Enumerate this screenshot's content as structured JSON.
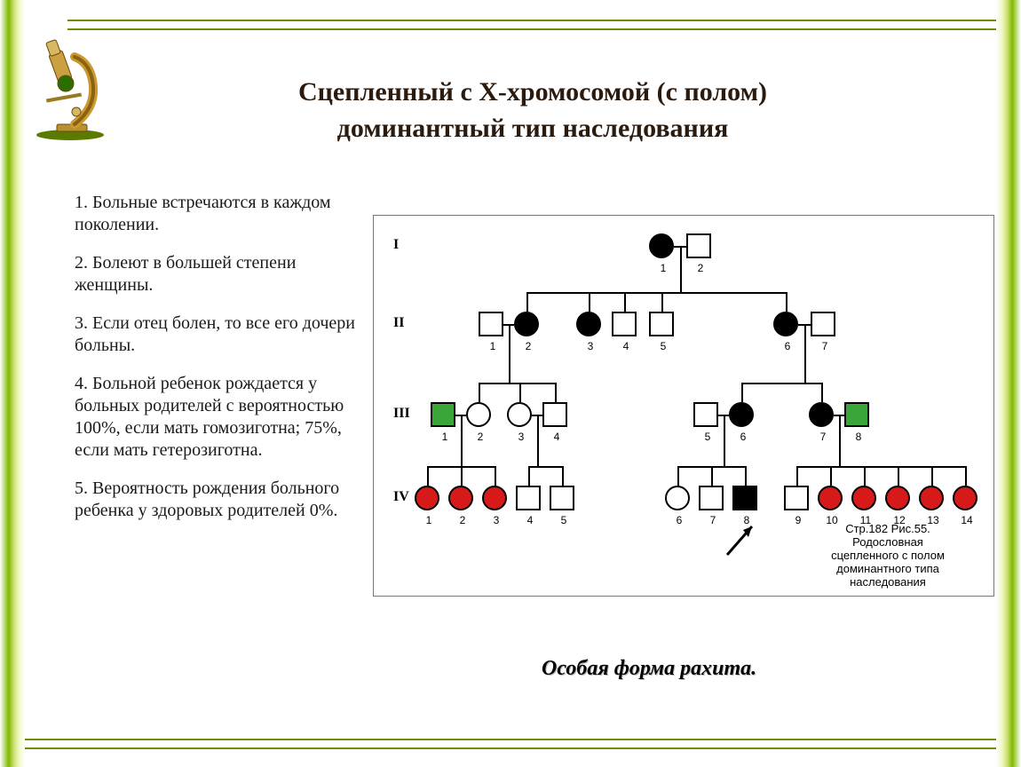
{
  "title": {
    "line1": "Сцепленный с Х-хромосомой    (с   полом)",
    "line2": "доминантный  тип  наследования"
  },
  "bullets": {
    "p1": "1. Больные встречаются в каждом поколении.",
    "p2": "2. Болеют в большей степени женщины.",
    "p3": "3. Если отец болен, то все его дочери больны.",
    "p4": "4. Больной ребенок рождается у больных родителей с вероятностью 100%, если мать гомозиготна; 75%, если мать гетерозиготна.",
    "p5": "5. Вероятность рождения больного ребенка у здоровых родителей 0%."
  },
  "disease_label": "Особая форма рахита.",
  "figure_caption": "Стр.182 Рис.55. Родословная сцепленного с полом доминантного типа наследования",
  "colors": {
    "affected_red": "#d61a1a",
    "affected_green": "#3aa63a",
    "affected_black": "#000000",
    "unaffected": "#ffffff",
    "border": "#000000",
    "frame_green": "#7fb800"
  },
  "generations": [
    "I",
    "II",
    "III",
    "IV"
  ],
  "pedigree": {
    "legend_shapes": {
      "square": "male",
      "circle": "female"
    },
    "fill_meaning": {
      "black": "affected-original",
      "red": "affected-gen4-female",
      "green": "marry-in-male",
      "white": "unaffected"
    },
    "gen1": [
      {
        "n": 1,
        "sex": "F",
        "fill": "black"
      },
      {
        "n": 2,
        "sex": "M",
        "fill": "white"
      }
    ],
    "gen2": [
      {
        "n": 1,
        "sex": "M",
        "fill": "white"
      },
      {
        "n": 2,
        "sex": "F",
        "fill": "black"
      },
      {
        "n": 3,
        "sex": "F",
        "fill": "black"
      },
      {
        "n": 4,
        "sex": "M",
        "fill": "white"
      },
      {
        "n": 5,
        "sex": "M",
        "fill": "white"
      },
      {
        "n": 6,
        "sex": "F",
        "fill": "black"
      },
      {
        "n": 7,
        "sex": "M",
        "fill": "white"
      }
    ],
    "gen3": [
      {
        "n": 1,
        "sex": "M",
        "fill": "green"
      },
      {
        "n": 2,
        "sex": "F",
        "fill": "white"
      },
      {
        "n": 3,
        "sex": "F",
        "fill": "white"
      },
      {
        "n": 4,
        "sex": "M",
        "fill": "white"
      },
      {
        "n": 5,
        "sex": "M",
        "fill": "white"
      },
      {
        "n": 6,
        "sex": "F",
        "fill": "black"
      },
      {
        "n": 7,
        "sex": "F",
        "fill": "black"
      },
      {
        "n": 8,
        "sex": "M",
        "fill": "green"
      }
    ],
    "gen4": [
      {
        "n": 1,
        "sex": "F",
        "fill": "red"
      },
      {
        "n": 2,
        "sex": "F",
        "fill": "red"
      },
      {
        "n": 3,
        "sex": "F",
        "fill": "red"
      },
      {
        "n": 4,
        "sex": "M",
        "fill": "white"
      },
      {
        "n": 5,
        "sex": "M",
        "fill": "white"
      },
      {
        "n": 6,
        "sex": "F",
        "fill": "white"
      },
      {
        "n": 7,
        "sex": "M",
        "fill": "white"
      },
      {
        "n": 8,
        "sex": "M",
        "fill": "black",
        "proband": true
      },
      {
        "n": 9,
        "sex": "M",
        "fill": "white"
      },
      {
        "n": 10,
        "sex": "F",
        "fill": "red"
      },
      {
        "n": 11,
        "sex": "F",
        "fill": "red"
      },
      {
        "n": 12,
        "sex": "F",
        "fill": "red"
      },
      {
        "n": 13,
        "sex": "F",
        "fill": "red"
      },
      {
        "n": 14,
        "sex": "F",
        "fill": "red"
      }
    ]
  }
}
